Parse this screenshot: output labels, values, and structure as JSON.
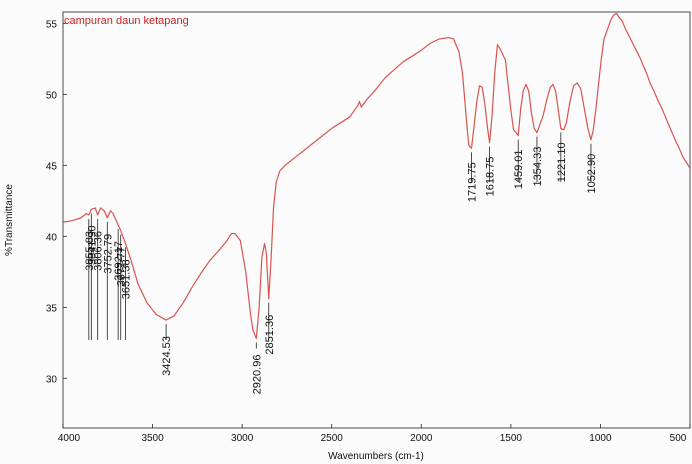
{
  "chart_data": {
    "type": "line",
    "title": "campuran daun ketapang",
    "xlabel": "Wavenumbers (cm-1)",
    "ylabel": "%Transmittance",
    "xlim": [
      4000,
      500
    ],
    "ylim": [
      26.5,
      55.8
    ],
    "x_reversed": true,
    "grid": false,
    "x_ticks": [
      4000,
      3500,
      3000,
      2500,
      2000,
      1500,
      1000,
      500
    ],
    "x_tick_labels": [
      "4000",
      "3500",
      "3000",
      "2500",
      "2000",
      "1500",
      "1000",
      "500"
    ],
    "y_ticks": [
      30,
      35,
      40,
      45,
      50,
      55
    ],
    "y_tick_labels": [
      "30",
      "35",
      "40",
      "45",
      "50",
      "55"
    ],
    "colors": {
      "series": "#d9534f",
      "title": "#cc2222",
      "axis": "#111111"
    },
    "series": [
      {
        "points": [
          [
            4000,
            41.0
          ],
          [
            3950,
            41.1
          ],
          [
            3900,
            41.3
          ],
          [
            3870,
            41.6
          ],
          [
            3855.83,
            41.5
          ],
          [
            3841.9,
            41.9
          ],
          [
            3820,
            42.0
          ],
          [
            3806.36,
            41.5
          ],
          [
            3790,
            42.0
          ],
          [
            3770,
            41.8
          ],
          [
            3752.79,
            41.3
          ],
          [
            3735,
            41.8
          ],
          [
            3720,
            41.6
          ],
          [
            3692.17,
            40.8
          ],
          [
            3677.77,
            40.4
          ],
          [
            3651.38,
            39.5
          ],
          [
            3620,
            38.3
          ],
          [
            3580,
            36.6
          ],
          [
            3530,
            35.3
          ],
          [
            3480,
            34.5
          ],
          [
            3424.53,
            34.1
          ],
          [
            3380,
            34.4
          ],
          [
            3330,
            35.3
          ],
          [
            3280,
            36.4
          ],
          [
            3230,
            37.4
          ],
          [
            3180,
            38.3
          ],
          [
            3130,
            39.0
          ],
          [
            3090,
            39.6
          ],
          [
            3060,
            40.2
          ],
          [
            3040,
            40.2
          ],
          [
            3010,
            39.7
          ],
          [
            2980,
            37.5
          ],
          [
            2955,
            34.7
          ],
          [
            2940,
            33.4
          ],
          [
            2920.96,
            32.8
          ],
          [
            2905,
            35.0
          ],
          [
            2890,
            38.5
          ],
          [
            2875,
            39.5
          ],
          [
            2865,
            38.8
          ],
          [
            2851.36,
            35.6
          ],
          [
            2838,
            38.5
          ],
          [
            2825,
            42.0
          ],
          [
            2810,
            43.8
          ],
          [
            2790,
            44.6
          ],
          [
            2760,
            45.0
          ],
          [
            2700,
            45.6
          ],
          [
            2600,
            46.6
          ],
          [
            2500,
            47.6
          ],
          [
            2400,
            48.4
          ],
          [
            2355,
            49.2
          ],
          [
            2345,
            49.5
          ],
          [
            2335,
            49.1
          ],
          [
            2300,
            49.7
          ],
          [
            2250,
            50.4
          ],
          [
            2200,
            51.2
          ],
          [
            2100,
            52.3
          ],
          [
            2000,
            53.1
          ],
          [
            1950,
            53.6
          ],
          [
            1900,
            53.9
          ],
          [
            1850,
            54.0
          ],
          [
            1820,
            53.9
          ],
          [
            1790,
            53.0
          ],
          [
            1770,
            51.5
          ],
          [
            1750,
            48.5
          ],
          [
            1735,
            46.4
          ],
          [
            1719.75,
            46.2
          ],
          [
            1705,
            47.8
          ],
          [
            1690,
            49.5
          ],
          [
            1675,
            50.6
          ],
          [
            1660,
            50.5
          ],
          [
            1645,
            49.3
          ],
          [
            1630,
            47.6
          ],
          [
            1618.75,
            46.6
          ],
          [
            1605,
            48.5
          ],
          [
            1590,
            51.5
          ],
          [
            1575,
            53.5
          ],
          [
            1560,
            53.2
          ],
          [
            1545,
            52.8
          ],
          [
            1530,
            52.4
          ],
          [
            1515,
            50.6
          ],
          [
            1500,
            48.9
          ],
          [
            1485,
            47.5
          ],
          [
            1470,
            47.3
          ],
          [
            1459.01,
            47.1
          ],
          [
            1445,
            49.0
          ],
          [
            1430,
            50.3
          ],
          [
            1415,
            50.7
          ],
          [
            1400,
            50.2
          ],
          [
            1385,
            48.7
          ],
          [
            1370,
            47.6
          ],
          [
            1354.33,
            47.3
          ],
          [
            1340,
            47.8
          ],
          [
            1320,
            48.5
          ],
          [
            1300,
            49.6
          ],
          [
            1280,
            50.5
          ],
          [
            1265,
            50.7
          ],
          [
            1250,
            50.2
          ],
          [
            1235,
            48.9
          ],
          [
            1221.1,
            47.6
          ],
          [
            1205,
            47.5
          ],
          [
            1190,
            48.0
          ],
          [
            1170,
            49.5
          ],
          [
            1150,
            50.6
          ],
          [
            1130,
            50.8
          ],
          [
            1110,
            50.4
          ],
          [
            1090,
            49.0
          ],
          [
            1070,
            47.6
          ],
          [
            1052.9,
            46.8
          ],
          [
            1040,
            47.5
          ],
          [
            1025,
            49.0
          ],
          [
            1010,
            50.8
          ],
          [
            995,
            52.5
          ],
          [
            980,
            53.9
          ],
          [
            960,
            54.6
          ],
          [
            940,
            55.3
          ],
          [
            925,
            55.6
          ],
          [
            910,
            55.7
          ],
          [
            895,
            55.4
          ],
          [
            880,
            55.2
          ],
          [
            860,
            54.6
          ],
          [
            840,
            54.1
          ],
          [
            820,
            53.6
          ],
          [
            800,
            53.1
          ],
          [
            780,
            52.6
          ],
          [
            760,
            52.0
          ],
          [
            740,
            51.4
          ],
          [
            720,
            50.7
          ],
          [
            700,
            50.2
          ],
          [
            680,
            49.6
          ],
          [
            660,
            49.1
          ],
          [
            640,
            48.5
          ],
          [
            620,
            47.9
          ],
          [
            600,
            47.3
          ],
          [
            580,
            46.7
          ],
          [
            560,
            46.2
          ],
          [
            540,
            45.6
          ],
          [
            520,
            45.2
          ],
          [
            500,
            44.8
          ]
        ]
      }
    ],
    "peak_labels": [
      {
        "text": "3855.83",
        "x": 3855.83,
        "y": 41.5
      },
      {
        "text": "3841.90",
        "x": 3841.9,
        "y": 41.9
      },
      {
        "text": "3752.79",
        "x": 3752.79,
        "y": 41.3
      },
      {
        "text": "3806.36",
        "x": 3806.36,
        "y": 41.5
      },
      {
        "text": "3677.77",
        "x": 3677.77,
        "y": 40.4
      },
      {
        "text": "3692.17",
        "x": 3692.17,
        "y": 40.8
      },
      {
        "text": "3651.38",
        "x": 3651.38,
        "y": 39.5
      },
      {
        "text": "3424.53",
        "x": 3424.53,
        "y": 34.1
      },
      {
        "text": "2920.96",
        "x": 2920.96,
        "y": 32.8
      },
      {
        "text": "2851.36",
        "x": 2851.36,
        "y": 35.6
      },
      {
        "text": "1719.75",
        "x": 1719.75,
        "y": 46.2
      },
      {
        "text": "1618.75",
        "x": 1618.75,
        "y": 46.6
      },
      {
        "text": "1459.01",
        "x": 1459.01,
        "y": 47.1
      },
      {
        "text": "1354.33",
        "x": 1354.33,
        "y": 47.3
      },
      {
        "text": "1221.10",
        "x": 1221.1,
        "y": 47.6
      },
      {
        "text": "1052.90",
        "x": 1052.9,
        "y": 46.8
      }
    ]
  }
}
